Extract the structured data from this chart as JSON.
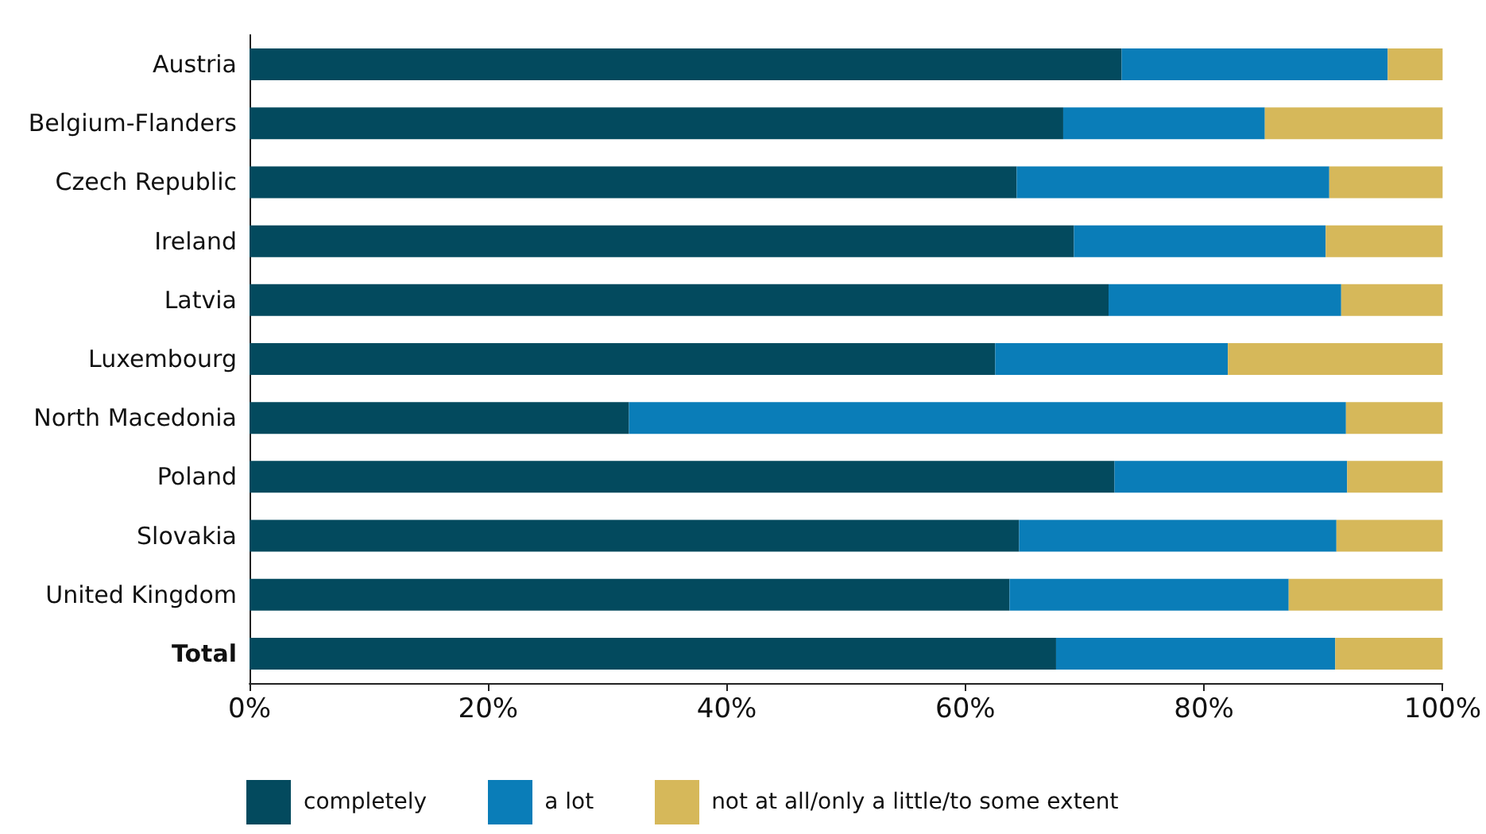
{
  "chart_data": {
    "type": "bar",
    "orientation": "horizontal",
    "stacked": true,
    "grid": false,
    "legend": "bottom left",
    "categories": [
      "Austria",
      "Belgium-Flanders",
      "Czech Republic",
      "Ireland",
      "Latvia",
      "Luxembourg",
      "North Macedonia",
      "Poland",
      "Slovakia",
      "United Kingdom",
      "Total"
    ],
    "series": [
      {
        "name": "completely",
        "color": "#034a5e",
        "values": [
          73.1,
          68.2,
          64.3,
          69.1,
          72.0,
          62.5,
          31.8,
          72.5,
          64.5,
          63.7,
          67.6
        ]
      },
      {
        "name": "a lot",
        "color": "#0a7db8",
        "values": [
          22.3,
          16.9,
          26.2,
          21.1,
          19.5,
          19.5,
          60.1,
          19.5,
          26.6,
          23.4,
          23.4
        ]
      },
      {
        "name": "not at all/only a little/to some extent",
        "color": "#d6b85a",
        "values": [
          4.6,
          14.9,
          9.5,
          9.8,
          8.5,
          18.0,
          8.1,
          8.0,
          8.9,
          12.9,
          9.0
        ]
      }
    ],
    "xlim": [
      0,
      100
    ],
    "xticks": [
      {
        "value": 0,
        "label": "0%"
      },
      {
        "value": 20,
        "label": "20%"
      },
      {
        "value": 40,
        "label": "40%"
      },
      {
        "value": 60,
        "label": "60%"
      },
      {
        "value": 80,
        "label": "80%"
      },
      {
        "value": 100,
        "label": "100%"
      }
    ]
  }
}
